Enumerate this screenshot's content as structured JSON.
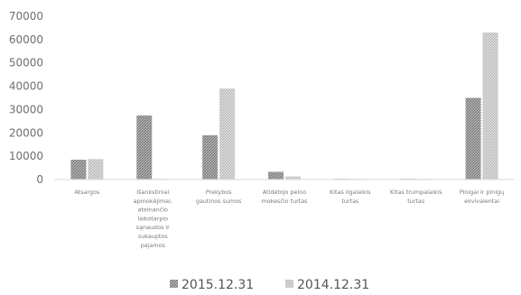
{
  "chart_data": {
    "type": "bar",
    "title": "",
    "xlabel": "",
    "ylabel": "",
    "ylim": [
      0,
      70000
    ],
    "yticks": [
      0,
      10000,
      20000,
      30000,
      40000,
      50000,
      60000,
      70000
    ],
    "grid": false,
    "legend_position": "bottom",
    "categories": [
      [
        "Atsargos"
      ],
      [
        "Išankstiniai",
        "apmokėjimai,",
        "ateinančio",
        "laikotarpio",
        "sąnaudos ir",
        "sukauptos",
        "pajamos"
      ],
      [
        "Prekybos",
        "gautinos sumos"
      ],
      [
        "Atidėtojo pelno",
        "mokesčio turtas"
      ],
      [
        "Kitas ilgalaikis",
        "turtas"
      ],
      [
        "Kitas trumpalaikis",
        "turtas"
      ],
      [
        "Pinigai ir pinigų",
        "ekvivalentai"
      ]
    ],
    "series": [
      {
        "name": "2015.12.31",
        "color": "#9a9a9a",
        "values": [
          8500,
          27500,
          19000,
          3300,
          300,
          300,
          35000
        ]
      },
      {
        "name": "2014.12.31",
        "color": "#cdcdcd",
        "values": [
          8800,
          300,
          39000,
          1300,
          300,
          300,
          63000
        ]
      }
    ]
  }
}
